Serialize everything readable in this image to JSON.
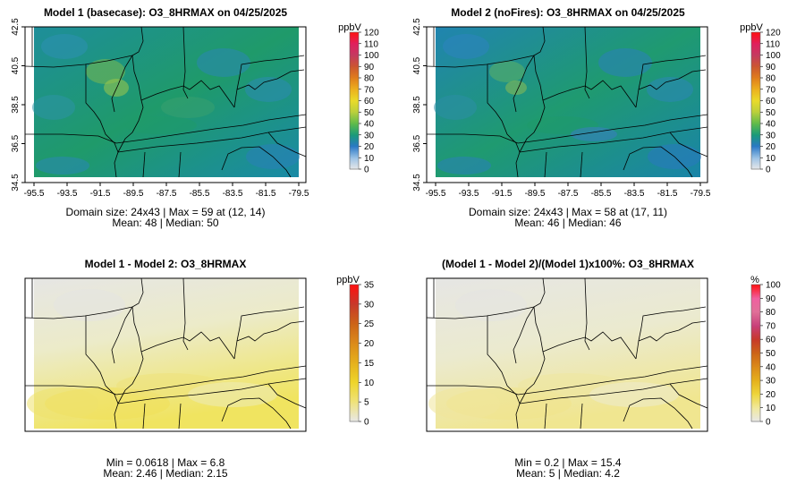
{
  "chart_data": [
    {
      "type": "heatmap",
      "title": "Model 1 (basecase): O3_8HRMAX on 04/25/2025",
      "unit": "ppbV",
      "colorbar_ticks": [
        "120",
        "110",
        "100",
        "90",
        "80",
        "70",
        "60",
        "50",
        "40",
        "30",
        "20",
        "10",
        "0"
      ],
      "colorbar_range": [
        0,
        120
      ],
      "colorbar_stops": [
        "#e8e8e8",
        "#9bc2e6",
        "#2a78c6",
        "#1a9a7a",
        "#5fbb4a",
        "#b9cf3c",
        "#eadb2a",
        "#ecb01e",
        "#e07e1c",
        "#cb5630",
        "#c43a60",
        "#e0205e",
        "#ff1010"
      ],
      "xticks": [
        "-95.5",
        "-93.5",
        "-91.5",
        "-89.5",
        "-87.5",
        "-85.5",
        "-83.5",
        "-81.5",
        "-79.5"
      ],
      "yticks": [
        "42.5",
        "40.5",
        "38.5",
        "36.5",
        "34.5"
      ],
      "xlim": [
        -95.5,
        -79.5
      ],
      "ylim": [
        34.5,
        42.5
      ],
      "caption_line1": "Domain size: 24x43 | Max = 59 at (12, 14)",
      "caption_line2": "Mean: 48 |  Median: 50",
      "stats": {
        "max": 59,
        "mean": 48,
        "median": 50
      },
      "field_colors": [
        "#1a8f8a",
        "#2d8fb2",
        "#6cb85a",
        "#b3c94a",
        "#1f9a6a"
      ]
    },
    {
      "type": "heatmap",
      "title": "Model 2 (noFires): O3_8HRMAX on 04/25/2025",
      "unit": "ppbV",
      "colorbar_ticks": [
        "120",
        "110",
        "100",
        "90",
        "80",
        "70",
        "60",
        "50",
        "40",
        "30",
        "20",
        "10",
        "0"
      ],
      "colorbar_range": [
        0,
        120
      ],
      "colorbar_stops": [
        "#e8e8e8",
        "#9bc2e6",
        "#2a78c6",
        "#1a9a7a",
        "#5fbb4a",
        "#b9cf3c",
        "#eadb2a",
        "#ecb01e",
        "#e07e1c",
        "#cb5630",
        "#c43a60",
        "#e0205e",
        "#ff1010"
      ],
      "xticks": [
        "-95.5",
        "-93.5",
        "-91.5",
        "-89.5",
        "-87.5",
        "-85.5",
        "-83.5",
        "-81.5",
        "-79.5"
      ],
      "yticks": [
        "42.5",
        "40.5",
        "38.5",
        "36.5",
        "34.5"
      ],
      "xlim": [
        -95.5,
        -79.5
      ],
      "ylim": [
        34.5,
        42.5
      ],
      "caption_line1": "Domain size: 24x43 | Max = 58 at (17, 11)",
      "caption_line2": "Mean: 46 |  Median: 46",
      "stats": {
        "max": 58,
        "mean": 46,
        "median": 46
      },
      "field_colors": [
        "#1a8f8a",
        "#2d88bd",
        "#5cb064",
        "#9cc04c",
        "#1f9a6a"
      ]
    },
    {
      "type": "heatmap",
      "title": "Model 1 - Model 2: O3_8HRMAX",
      "unit": "ppbV",
      "colorbar_ticks": [
        "35",
        "30",
        "25",
        "20",
        "15",
        "10",
        "5",
        "0"
      ],
      "colorbar_range": [
        0,
        35
      ],
      "colorbar_stops": [
        "#e8e8e8",
        "#efe27a",
        "#eed52a",
        "#e5b01c",
        "#db8a1a",
        "#cc6418",
        "#c7392a",
        "#ff1010"
      ],
      "caption_line1": "Min = 0.0618 | Max = 6.8",
      "caption_line2": "Mean: 2.46 |  Median: 2.15",
      "stats": {
        "min": 0.0618,
        "max": 6.8,
        "mean": 2.46,
        "median": 2.15
      },
      "field_colors": [
        "#e6e6e4",
        "#ecebc9",
        "#efe79a",
        "#f0e35e"
      ]
    },
    {
      "type": "heatmap",
      "title": "(Model 1 - Model 2)/(Model 1)x100%: O3_8HRMAX",
      "unit": "%",
      "colorbar_ticks": [
        "100",
        "90",
        "80",
        "70",
        "60",
        "50",
        "40",
        "30",
        "20",
        "10",
        "0"
      ],
      "colorbar_range": [
        0,
        100
      ],
      "colorbar_stops": [
        "#e8e8e8",
        "#f0e89c",
        "#eed53a",
        "#e5b01c",
        "#db8a1a",
        "#cc6418",
        "#c7392a",
        "#c8407a",
        "#e07098",
        "#f060a0",
        "#ff1010"
      ],
      "caption_line1": "Min = 0.2 | Max = 15.4",
      "caption_line2": "Mean: 5 |  Median: 4.2",
      "stats": {
        "min": 0.2,
        "max": 15.4,
        "mean": 5,
        "median": 4.2
      },
      "field_colors": [
        "#e6e6e4",
        "#ebeacd",
        "#eee8ad",
        "#f0e488"
      ]
    }
  ]
}
